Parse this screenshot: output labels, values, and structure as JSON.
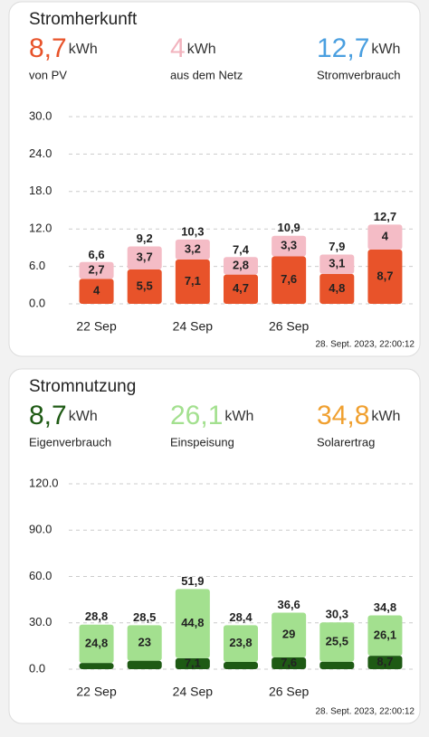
{
  "chart_data": [
    {
      "type": "stacked-bar",
      "title": "Stromherkunft",
      "stats": [
        {
          "value": "8,7",
          "unit": "kWh",
          "label": "von PV",
          "color": "#e8532a"
        },
        {
          "value": "4",
          "unit": "kWh",
          "label": "aus dem Netz",
          "color": "#f2b3be"
        },
        {
          "value": "12,7",
          "unit": "kWh",
          "label": "Stromverbrauch",
          "color": "#4a9fe0"
        }
      ],
      "categories": [
        "22 Sep",
        null,
        "24 Sep",
        null,
        "26 Sep",
        null,
        null
      ],
      "series": [
        {
          "color": "#e8532a",
          "label_color": "#f7c2b4",
          "values": [
            4,
            5.5,
            7.1,
            4.7,
            7.6,
            4.8,
            8.7
          ],
          "value_labels": [
            "4",
            "5,5",
            "7,1",
            "4,7",
            "7,6",
            "4,8",
            "8,7"
          ]
        },
        {
          "color": "#f4bcc6",
          "label_color": "#4a9fe0",
          "values": [
            2.7,
            3.7,
            3.2,
            2.8,
            3.3,
            3.1,
            4
          ],
          "value_labels": [
            "2,7",
            "3,7",
            "3,2",
            "2,8",
            "3,3",
            "3,1",
            "4"
          ]
        }
      ],
      "totals": {
        "color": "#4a9fe0",
        "values": [
          6.6,
          9.2,
          10.3,
          7.4,
          10.9,
          7.9,
          12.7
        ],
        "value_labels": [
          "6,6",
          "9,2",
          "10,3",
          "7,4",
          "10,9",
          "7,9",
          "12,7"
        ]
      },
      "ylim": [
        0,
        30
      ],
      "yticks": [
        {
          "value": 0,
          "label": "0.0"
        },
        {
          "value": 6,
          "label": "6.0"
        },
        {
          "value": 12,
          "label": "12.0"
        },
        {
          "value": 18,
          "label": "18.0"
        },
        {
          "value": 24,
          "label": "24.0"
        },
        {
          "value": 30,
          "label": "30.0"
        }
      ],
      "grid": true,
      "timestamp": "28. Sept. 2023, 22:00:12"
    },
    {
      "type": "stacked-bar",
      "title": "Stromnutzung",
      "stats": [
        {
          "value": "8,7",
          "unit": "kWh",
          "label": "Eigenverbrauch",
          "color": "#1e5a14"
        },
        {
          "value": "26,1",
          "unit": "kWh",
          "label": "Einspeisung",
          "color": "#a3e08f"
        },
        {
          "value": "34,8",
          "unit": "kWh",
          "label": "Solarertrag",
          "color": "#f0a030"
        }
      ],
      "categories": [
        "22 Sep",
        null,
        "24 Sep",
        null,
        "26 Sep",
        null,
        null
      ],
      "series": [
        {
          "color": "#1e5a14",
          "label_color": "#f0a030",
          "values": [
            4,
            5.5,
            7.1,
            4.7,
            7.6,
            4.8,
            8.7
          ],
          "value_labels": [
            null,
            null,
            "7,1",
            null,
            "7,6",
            null,
            "8,7"
          ]
        },
        {
          "color": "#a3e08f",
          "label_color": "#f0a030",
          "values": [
            24.8,
            23,
            44.8,
            23.8,
            29,
            25.5,
            26.1
          ],
          "value_labels": [
            "24,8",
            "23",
            "44,8",
            "23,8",
            "29",
            "25,5",
            "26,1"
          ]
        }
      ],
      "totals": {
        "color": "#f0a030",
        "values": [
          28.8,
          28.5,
          51.9,
          28.4,
          36.6,
          30.3,
          34.8
        ],
        "value_labels": [
          "28,8",
          "28,5",
          "51,9",
          "28,4",
          "36,6",
          "30,3",
          "34,8"
        ]
      },
      "ylim": [
        0,
        120
      ],
      "yticks": [
        {
          "value": 0,
          "label": "0.0"
        },
        {
          "value": 30,
          "label": "30.0"
        },
        {
          "value": 60,
          "label": "60.0"
        },
        {
          "value": 90,
          "label": "90.0"
        },
        {
          "value": 120,
          "label": "120.0"
        }
      ],
      "grid": true,
      "timestamp": "28. Sept. 2023, 22:00:12"
    }
  ]
}
